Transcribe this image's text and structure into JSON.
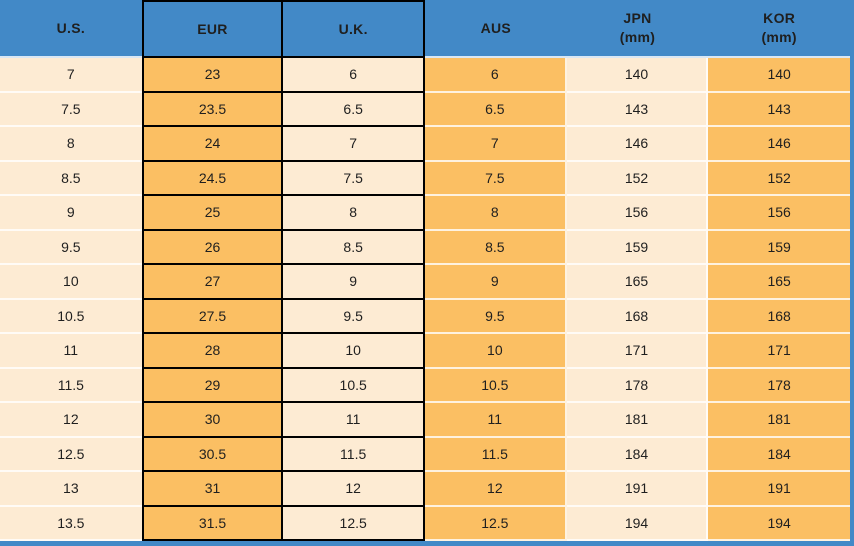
{
  "chart_data": {
    "type": "table",
    "columns": [
      {
        "label": "U.S.",
        "sublabel": ""
      },
      {
        "label": "EUR",
        "sublabel": ""
      },
      {
        "label": "U.K.",
        "sublabel": ""
      },
      {
        "label": "AUS",
        "sublabel": ""
      },
      {
        "label": "JPN",
        "sublabel": "(mm)"
      },
      {
        "label": "KOR",
        "sublabel": "(mm)"
      }
    ],
    "rows": [
      [
        "7",
        "23",
        "6",
        "6",
        "140",
        "140"
      ],
      [
        "7.5",
        "23.5",
        "6.5",
        "6.5",
        "143",
        "143"
      ],
      [
        "8",
        "24",
        "7",
        "7",
        "146",
        "146"
      ],
      [
        "8.5",
        "24.5",
        "7.5",
        "7.5",
        "152",
        "152"
      ],
      [
        "9",
        "25",
        "8",
        "8",
        "156",
        "156"
      ],
      [
        "9.5",
        "26",
        "8.5",
        "8.5",
        "159",
        "159"
      ],
      [
        "10",
        "27",
        "9",
        "9",
        "165",
        "165"
      ],
      [
        "10.5",
        "27.5",
        "9.5",
        "9.5",
        "168",
        "168"
      ],
      [
        "11",
        "28",
        "10",
        "10",
        "171",
        "171"
      ],
      [
        "11.5",
        "29",
        "10.5",
        "10.5",
        "178",
        "178"
      ],
      [
        "12",
        "30",
        "11",
        "11",
        "181",
        "181"
      ],
      [
        "12.5",
        "30.5",
        "11.5",
        "11.5",
        "184",
        "184"
      ],
      [
        "13",
        "31",
        "12",
        "12",
        "191",
        "191"
      ],
      [
        "13.5",
        "31.5",
        "12.5",
        "12.5",
        "194",
        "194"
      ]
    ]
  },
  "colors": {
    "header_blue": "#4289C7",
    "cell_cream": "#FDEBD3",
    "cell_orange": "#FBBF63",
    "grid_black": "#000000",
    "separator_white": "rgba(255,255,255,0.8)",
    "text_black": "#1F1F1F"
  }
}
